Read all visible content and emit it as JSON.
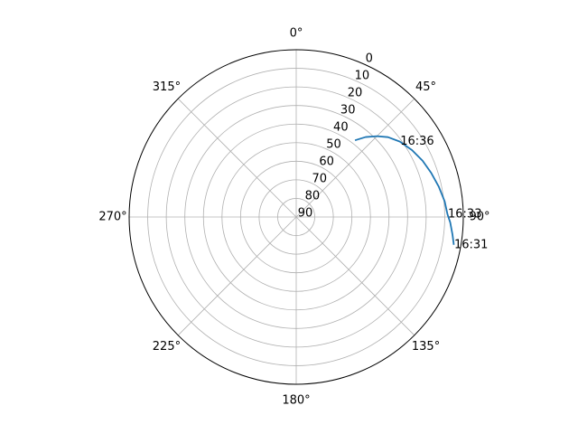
{
  "chart_data": {
    "type": "line",
    "projection": "polar",
    "theta_zero_location": "N",
    "theta_direction": "clockwise",
    "r_axis": "inverted",
    "rlim": [
      90,
      0
    ],
    "grid": true,
    "theta_ticks": [
      {
        "deg": 0,
        "label": "0°"
      },
      {
        "deg": 45,
        "label": "45°"
      },
      {
        "deg": 90,
        "label": "90°"
      },
      {
        "deg": 135,
        "label": "135°"
      },
      {
        "deg": 180,
        "label": "180°"
      },
      {
        "deg": 225,
        "label": "225°"
      },
      {
        "deg": 270,
        "label": "270°"
      },
      {
        "deg": 315,
        "label": "315°"
      }
    ],
    "r_ticks": [
      {
        "value": 0,
        "label": "0"
      },
      {
        "value": 10,
        "label": "10"
      },
      {
        "value": 20,
        "label": "20"
      },
      {
        "value": 30,
        "label": "30"
      },
      {
        "value": 40,
        "label": "40"
      },
      {
        "value": 50,
        "label": "50"
      },
      {
        "value": 60,
        "label": "60"
      },
      {
        "value": 70,
        "label": "70"
      },
      {
        "value": 80,
        "label": "80"
      },
      {
        "value": 90,
        "label": "90"
      }
    ],
    "series": [
      {
        "color": "#1f77b4",
        "points": [
          {
            "azimuth": 100.0,
            "elevation": 3.8
          },
          {
            "azimuth": 96.4,
            "elevation": 5.3
          },
          {
            "azimuth": 92.0,
            "elevation": 7.0
          },
          {
            "azimuth": 89.0,
            "elevation": 8.5
          },
          {
            "azimuth": 84.0,
            "elevation": 9.6
          },
          {
            "azimuth": 78.0,
            "elevation": 11.5
          },
          {
            "azimuth": 72.0,
            "elevation": 13.5
          },
          {
            "azimuth": 66.0,
            "elevation": 15.5
          },
          {
            "azimuth": 60.0,
            "elevation": 18.0
          },
          {
            "azimuth": 54.0,
            "elevation": 21.0
          },
          {
            "azimuth": 49.0,
            "elevation": 24.5
          },
          {
            "azimuth": 45.0,
            "elevation": 28.5
          },
          {
            "azimuth": 41.0,
            "elevation": 33.0
          },
          {
            "azimuth": 37.5,
            "elevation": 38.0
          }
        ]
      }
    ],
    "annotations": [
      {
        "label": "16:31",
        "azimuth": 100.0,
        "elevation": 3.8
      },
      {
        "label": "16:33",
        "azimuth": 89.0,
        "elevation": 8.5
      },
      {
        "label": "16:36",
        "azimuth": 54.0,
        "elevation": 21.0
      }
    ]
  }
}
